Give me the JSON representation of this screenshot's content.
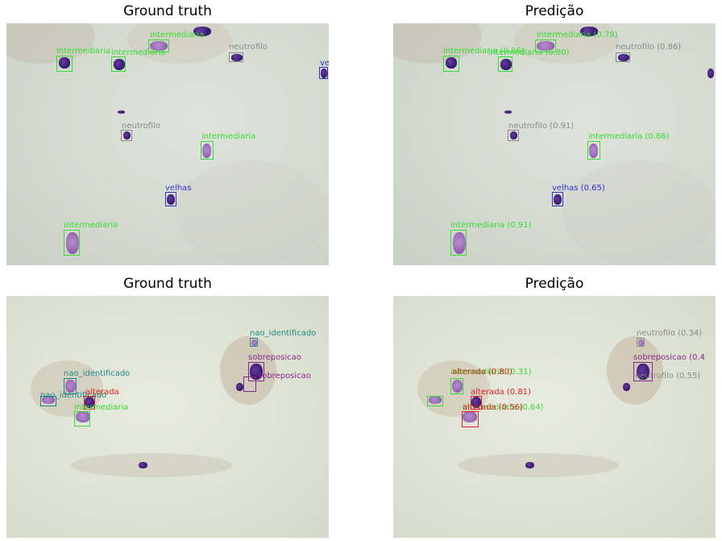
{
  "panels": {
    "tl": {
      "title": "Ground truth"
    },
    "tr": {
      "title": "Predição"
    },
    "bl": {
      "title": "Ground truth"
    },
    "br": {
      "title": "Predição"
    }
  },
  "labels": {
    "tl": [
      "intermediaria",
      "intermediaria",
      "intermediaria",
      "neutrofilo",
      "ve",
      "neutrofilo",
      "intermediaria",
      "velhas",
      "intermediaria"
    ],
    "tr": [
      "intermediaria (0.79)",
      "intermediaria (0.86)",
      "intermediaria (0.80)",
      "neutrofilo (0.86)",
      "neutrofilo (0.91)",
      "intermediaria (0.86)",
      "velhas (0.65)",
      "intermediaria (0.91)"
    ],
    "bl": [
      "nao_identificado",
      "sobreposicao",
      "sobreposicao",
      "nao_identificado",
      "nao_identificado",
      "alterada",
      "intermediaria"
    ],
    "br": [
      "neutrofilo (0.34)",
      "sobreposicao (0.4",
      "neutrofilo (0.55)",
      "intermediaria (0.31)",
      "alterada (0.80)",
      "intermediaria (0.64)",
      "alterada (0.81)",
      "alterada (0.56)"
    ]
  },
  "colors": {
    "intermediaria": "#33dd33",
    "neutrofilo": "#8a8a8a",
    "velhas": "#2f2fd6",
    "nao_identificado": "#1d8a8a",
    "sobreposicao": "#8a2a8a",
    "alterada": "#e02020"
  }
}
